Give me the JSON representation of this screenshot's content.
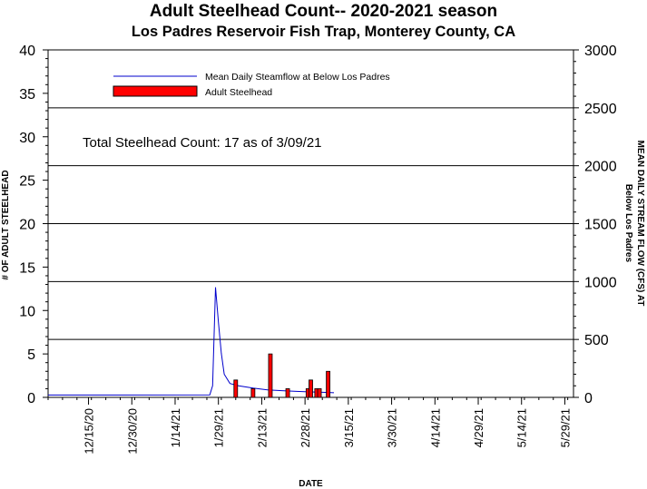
{
  "chart_data": {
    "type": "bar",
    "title": "Adult Steelhead Count-- 2020-2021 season",
    "subtitle": "Los Padres Reservoir Fish Trap, Monterey County, CA",
    "xlabel": "DATE",
    "ylabel": "# OF ADULT STEELHEAD",
    "y2label_line1": "MEAN DAILY STREAM FLOW (CFS) AT",
    "y2label_line2": "Below Los Padres",
    "ylim": [
      0,
      40
    ],
    "y2lim": [
      0,
      3000
    ],
    "yticks": [
      "0",
      "5",
      "10",
      "15",
      "20",
      "25",
      "30",
      "35",
      "40"
    ],
    "y2ticks": [
      "0",
      "500",
      "1000",
      "1500",
      "2000",
      "2500",
      "3000"
    ],
    "xlim": [
      "2020-12-01",
      "2021-06-01"
    ],
    "xticks": [
      "12/15/20",
      "12/30/20",
      "1/14/21",
      "1/29/21",
      "2/13/21",
      "2/28/21",
      "3/15/21",
      "3/30/21",
      "4/14/21",
      "4/29/21",
      "5/14/21",
      "5/29/21"
    ],
    "xtick_dates": [
      "2020-12-15",
      "2020-12-30",
      "2021-01-14",
      "2021-01-29",
      "2021-02-13",
      "2021-02-28",
      "2021-03-15",
      "2021-03-30",
      "2021-04-14",
      "2021-04-29",
      "2021-05-14",
      "2021-05-29"
    ],
    "gridlines": "horizontal at right-axis multiples of 500",
    "legend_placement": "top-left",
    "annotation": "Total Steelhead Count: 17 as of 3/09/21",
    "series": [
      {
        "name": "Mean Daily Steamflow at Below Los Padres",
        "kind": "line",
        "axis": "right",
        "color": "#0000cc",
        "x": [
          "2020-12-01",
          "2021-01-26",
          "2021-01-27",
          "2021-01-28",
          "2021-01-29",
          "2021-01-30",
          "2021-01-31",
          "2021-02-02",
          "2021-02-05",
          "2021-02-10",
          "2021-02-15",
          "2021-02-20",
          "2021-02-25",
          "2021-03-01",
          "2021-03-06",
          "2021-03-10"
        ],
        "values": [
          20,
          22,
          100,
          950,
          650,
          380,
          200,
          120,
          100,
          80,
          65,
          58,
          52,
          48,
          44,
          40
        ]
      },
      {
        "name": "Adult Steelhead",
        "kind": "bar",
        "axis": "left",
        "color": "#ff0000",
        "x": [
          "2021-02-04",
          "2021-02-10",
          "2021-02-16",
          "2021-02-22",
          "2021-03-01",
          "2021-03-02",
          "2021-03-04",
          "2021-03-05",
          "2021-03-08"
        ],
        "values": [
          2,
          1,
          5,
          1,
          1,
          2,
          1,
          1,
          3
        ]
      }
    ]
  }
}
